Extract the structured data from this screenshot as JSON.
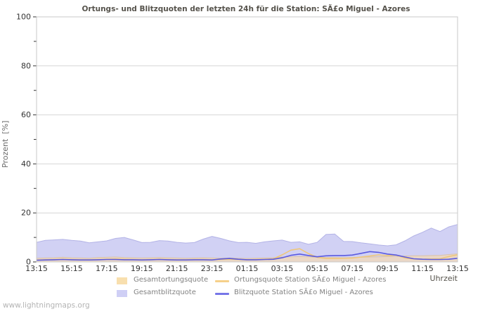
{
  "page": {
    "watermark": "www.lightningmaps.org"
  },
  "chart_data": {
    "type": "area",
    "title": "Ortungs- und Blitzquoten der letzten 24h für die Station: SÃ£o Miguel - Azores",
    "xlabel": "Uhrzeit",
    "ylabel": "Prozent  [%]",
    "ylim": [
      0,
      100
    ],
    "grid": true,
    "legend_position": "bottom",
    "y_major_ticks": [
      0,
      20,
      40,
      60,
      80,
      100
    ],
    "y_minor_ticks": [
      10,
      30,
      50,
      70,
      90
    ],
    "x_major_label_every": 4,
    "x": [
      "13:15",
      "13:45",
      "14:15",
      "14:45",
      "15:15",
      "15:45",
      "16:15",
      "16:45",
      "17:15",
      "17:45",
      "18:15",
      "18:45",
      "19:15",
      "19:45",
      "20:15",
      "20:45",
      "21:15",
      "21:45",
      "22:15",
      "22:45",
      "23:15",
      "23:45",
      "00:15",
      "00:45",
      "01:15",
      "01:45",
      "02:15",
      "02:45",
      "03:15",
      "03:45",
      "04:15",
      "04:45",
      "05:15",
      "05:45",
      "06:15",
      "06:45",
      "07:15",
      "07:45",
      "08:15",
      "08:45",
      "09:15",
      "09:45",
      "10:15",
      "10:45",
      "11:15",
      "11:45",
      "12:15",
      "12:45",
      "13:15"
    ],
    "series": [
      {
        "name": "Gesamtortungsquote",
        "type": "area",
        "order": 2,
        "color": "#ead7c6",
        "edge": "#d9c2a9",
        "legend_color": "#f8dfae",
        "values": [
          1.5,
          1.6,
          1.7,
          1.9,
          1.7,
          1.6,
          1.5,
          1.8,
          1.9,
          2.0,
          1.8,
          1.7,
          1.6,
          1.7,
          1.8,
          1.7,
          1.6,
          1.5,
          1.6,
          1.7,
          1.6,
          1.5,
          1.6,
          1.5,
          1.4,
          1.5,
          1.6,
          1.7,
          2.0,
          2.1,
          2.2,
          2.1,
          1.9,
          1.8,
          1.8,
          1.7,
          1.8,
          1.9,
          2.0,
          2.1,
          2.2,
          2.3,
          2.4,
          2.5,
          2.5,
          2.6,
          2.7,
          3.0,
          3.3
        ]
      },
      {
        "name": "Gesamtblitzquote",
        "type": "area",
        "order": 1,
        "color": "#d1d1f4",
        "edge": "#b3b3e6",
        "legend_color": "#cfcff5",
        "values": [
          8.0,
          8.8,
          9.0,
          9.2,
          8.8,
          8.5,
          7.8,
          8.2,
          8.6,
          9.6,
          10.0,
          9.0,
          7.9,
          8.0,
          8.7,
          8.5,
          8.0,
          7.7,
          7.9,
          9.3,
          10.4,
          9.6,
          8.6,
          7.9,
          8.0,
          7.6,
          8.2,
          8.6,
          8.9,
          8.0,
          8.2,
          7.2,
          8.0,
          11.2,
          11.4,
          8.4,
          8.3,
          7.8,
          7.4,
          6.9,
          6.6,
          7.0,
          8.6,
          10.6,
          12.1,
          13.8,
          12.4,
          14.3,
          15.3
        ]
      },
      {
        "name": "Ortungsquote Station SÃ£o Miguel - Azores",
        "type": "line",
        "order": 3,
        "color": "#eec77b",
        "legend_color": "#f6d08a",
        "values": [
          0.8,
          0.9,
          1.0,
          1.1,
          1.0,
          0.9,
          0.9,
          1.0,
          1.1,
          1.2,
          1.1,
          1.0,
          0.9,
          1.0,
          1.1,
          1.0,
          0.9,
          0.9,
          1.0,
          1.0,
          0.9,
          1.0,
          1.1,
          1.0,
          0.9,
          1.0,
          1.1,
          1.3,
          2.9,
          4.8,
          5.4,
          3.4,
          1.9,
          1.4,
          1.4,
          1.5,
          1.6,
          2.0,
          2.4,
          2.9,
          2.6,
          2.8,
          1.6,
          1.2,
          1.1,
          1.2,
          1.3,
          2.2,
          2.9
        ]
      },
      {
        "name": "Blitzquote Station SÃ£o Miguel - Azores",
        "type": "line",
        "order": 4,
        "color": "#5a5ae0",
        "legend_color": "#7676e8",
        "values": [
          0.7,
          0.8,
          0.9,
          1.0,
          0.9,
          0.8,
          0.8,
          0.9,
          1.0,
          1.0,
          0.9,
          0.9,
          0.8,
          0.9,
          1.0,
          0.9,
          0.8,
          0.8,
          0.9,
          0.9,
          0.8,
          1.2,
          1.4,
          1.1,
          0.9,
          0.9,
          1.0,
          1.1,
          1.7,
          2.7,
          3.2,
          2.6,
          2.1,
          2.5,
          2.6,
          2.6,
          2.8,
          3.5,
          4.2,
          3.9,
          3.2,
          2.8,
          2.0,
          1.3,
          1.1,
          1.0,
          1.0,
          1.1,
          1.5
        ]
      }
    ]
  }
}
